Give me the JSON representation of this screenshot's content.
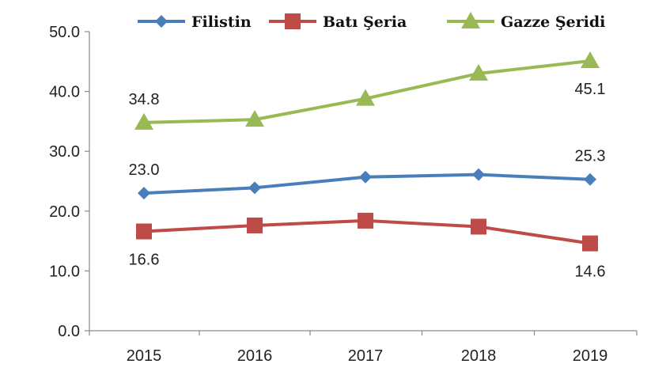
{
  "chart_data": {
    "type": "line",
    "title": "",
    "xlabel": "",
    "ylabel": "",
    "categories": [
      "2015",
      "2016",
      "2017",
      "2018",
      "2019"
    ],
    "ylim": [
      0,
      50
    ],
    "yticks": [
      "0.0",
      "10.0",
      "20.0",
      "30.0",
      "40.0",
      "50.0"
    ],
    "grid": false,
    "legend_position": "top",
    "series": [
      {
        "name": "Filistin",
        "values": [
          23.0,
          23.9,
          25.7,
          26.1,
          25.3
        ],
        "color": "#4a7ebb",
        "marker": "diamond",
        "labels": [
          {
            "index": 0,
            "text": "23.0",
            "pos": "above"
          },
          {
            "index": 4,
            "text": "25.3",
            "pos": "above"
          }
        ]
      },
      {
        "name": "Batı Şeria",
        "values": [
          16.6,
          17.6,
          18.4,
          17.4,
          14.6
        ],
        "color": "#be4b48",
        "marker": "square",
        "labels": [
          {
            "index": 0,
            "text": "16.6",
            "pos": "below"
          },
          {
            "index": 4,
            "text": "14.6",
            "pos": "below"
          }
        ]
      },
      {
        "name": "Gazze Şeridi",
        "values": [
          34.8,
          35.3,
          38.8,
          43.0,
          45.1
        ],
        "color": "#98b954",
        "marker": "triangle",
        "labels": [
          {
            "index": 0,
            "text": "34.8",
            "pos": "above"
          },
          {
            "index": 4,
            "text": "45.1",
            "pos": "below"
          }
        ]
      }
    ]
  }
}
